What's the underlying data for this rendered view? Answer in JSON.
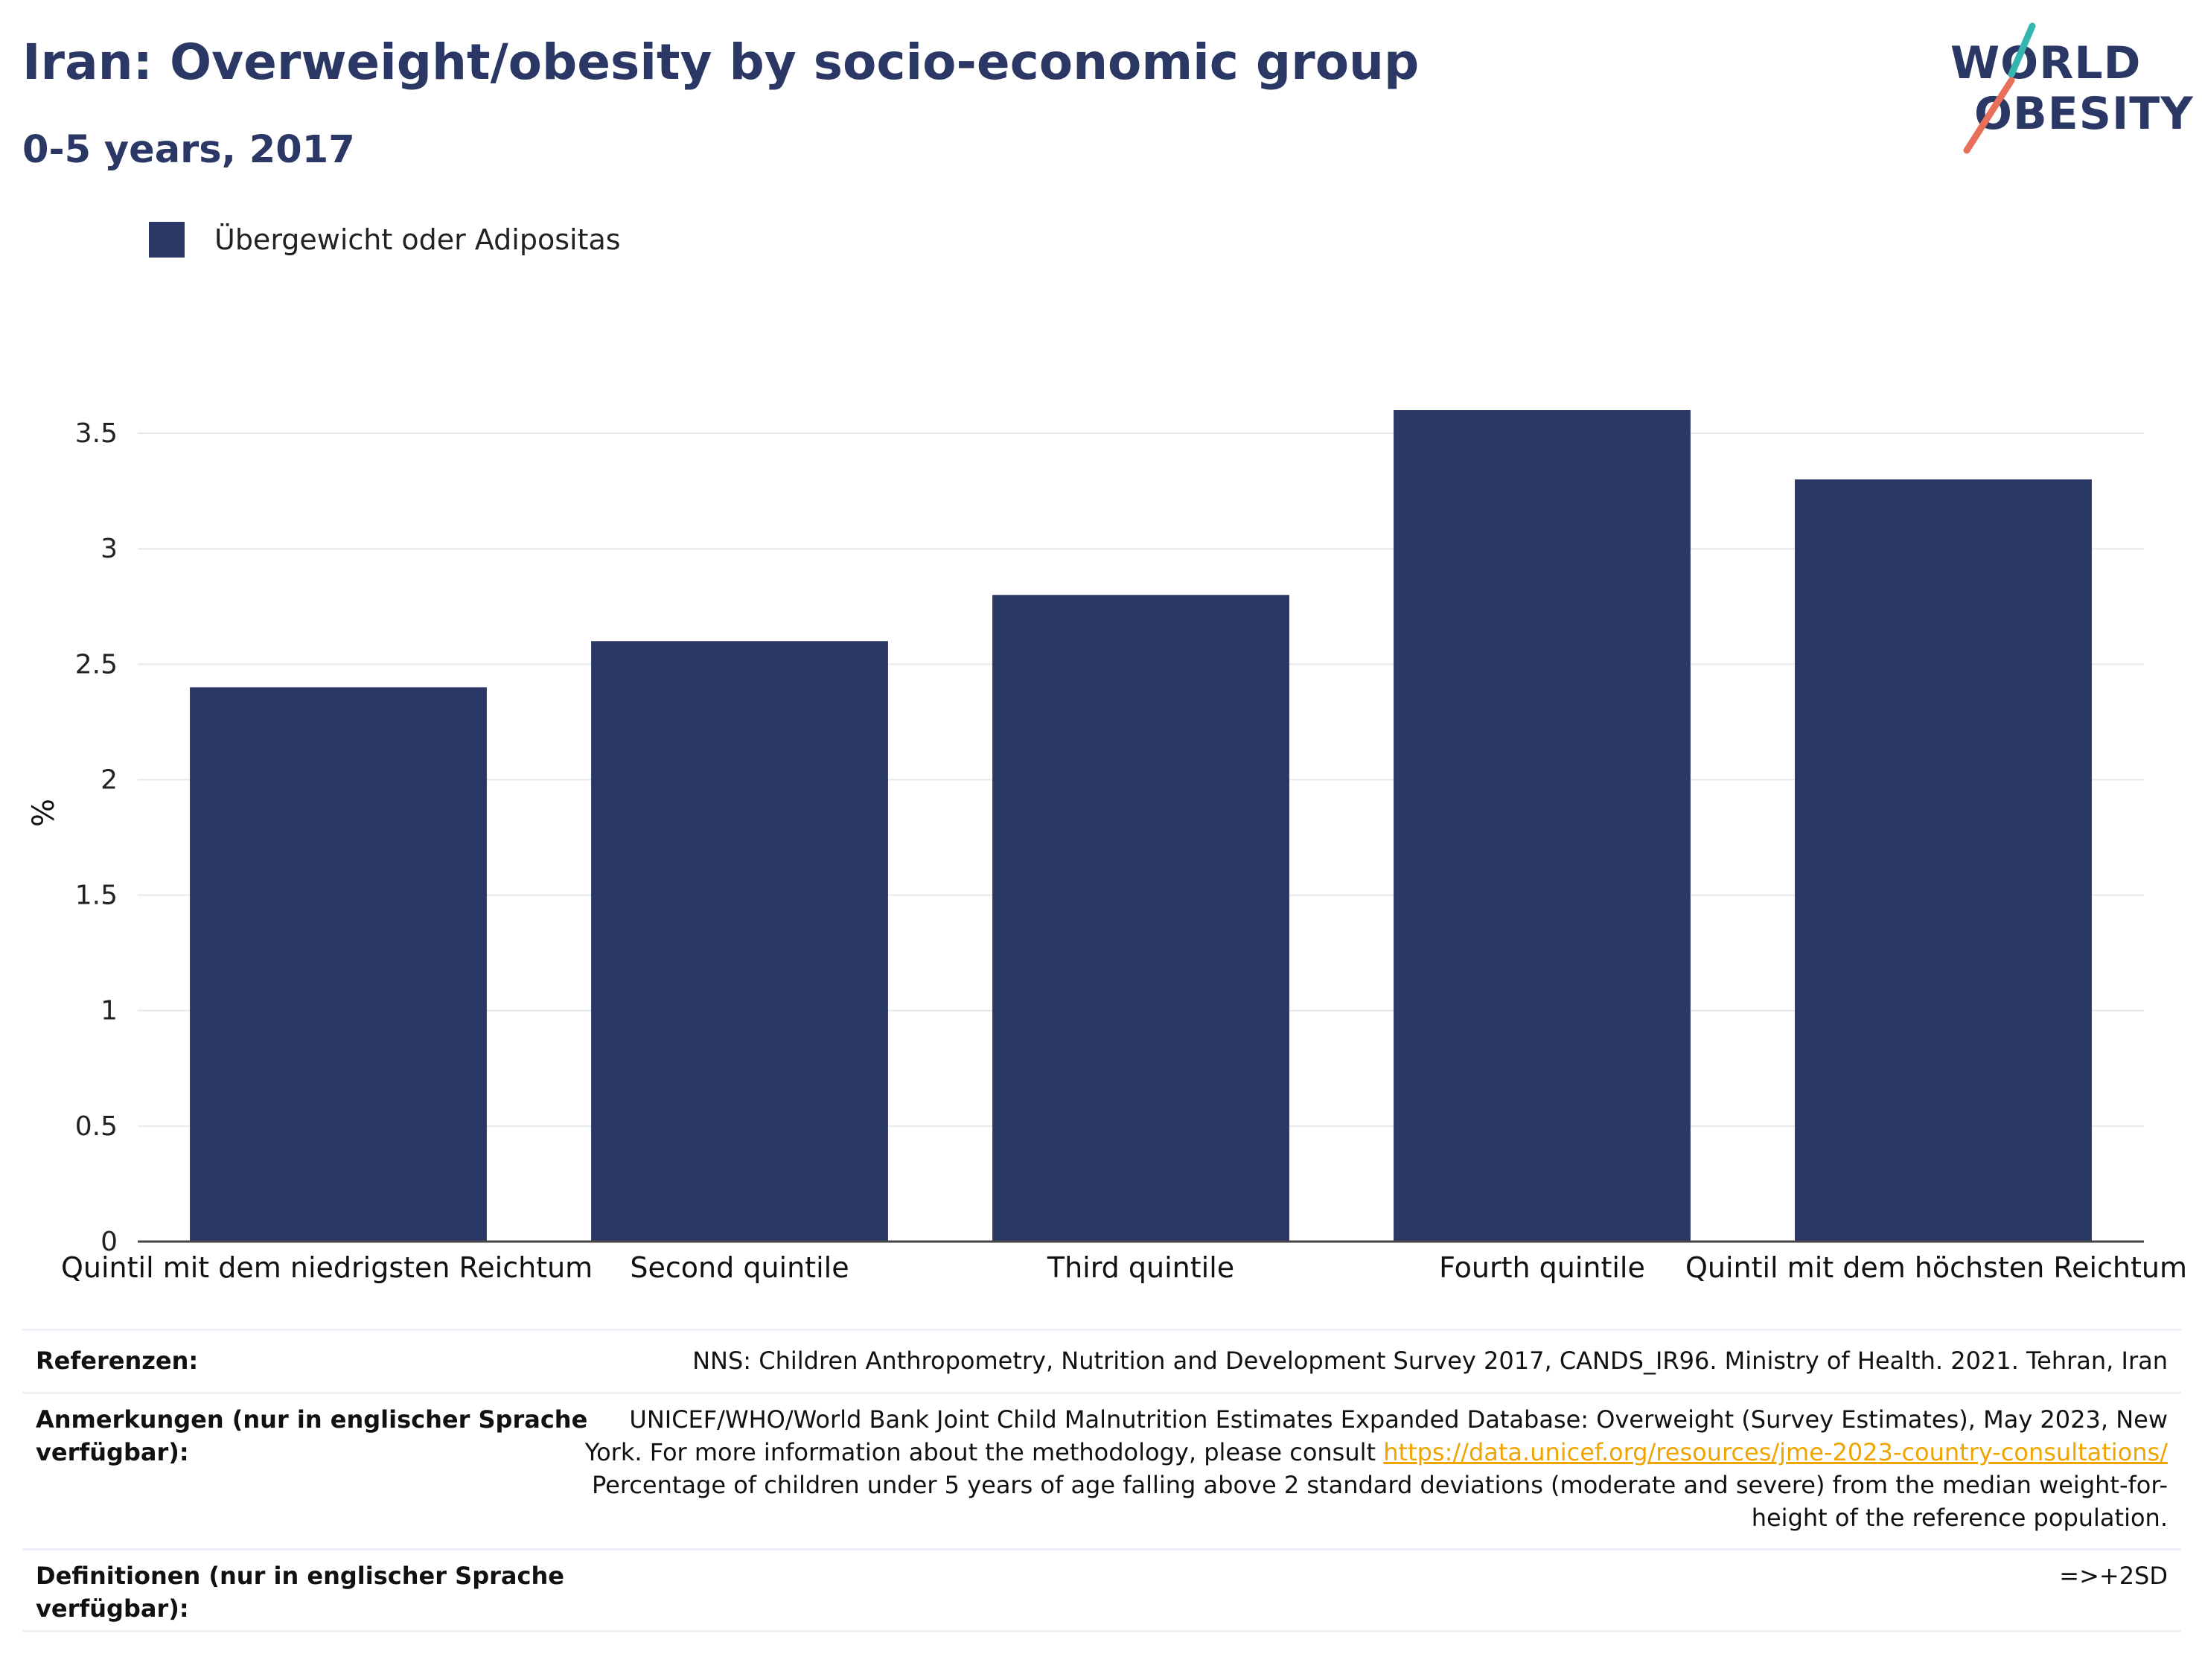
{
  "title": "Iran: Overweight/obesity by socio-economic group",
  "subtitle": "0-5 years, 2017",
  "logo": {
    "line1": "WORLD",
    "line2": "OBESITY"
  },
  "colors": {
    "bar": "#2b3765",
    "title": "#2b3765",
    "link": "#f0a400",
    "logo_slash_teal": "#35b5b0",
    "logo_slash_coral": "#e8705a"
  },
  "chart_data": {
    "type": "bar",
    "categories": [
      "Quintil mit dem niedrigsten Reichtum",
      "Second quintile",
      "Third quintile",
      "Fourth quintile",
      "Quintil mit dem höchsten Reichtum"
    ],
    "series": [
      {
        "name": "Übergewicht oder Adipositas",
        "values": [
          2.4,
          2.6,
          2.8,
          3.6,
          3.3
        ]
      }
    ],
    "ylabel": "%",
    "ylim": [
      0,
      3.7
    ],
    "yticks": [
      {
        "value": 0,
        "label": "0"
      },
      {
        "value": 0.5,
        "label": "0.5"
      },
      {
        "value": 1,
        "label": "1"
      },
      {
        "value": 1.5,
        "label": "1.5"
      },
      {
        "value": 2,
        "label": "2"
      },
      {
        "value": 2.5,
        "label": "2.5"
      },
      {
        "value": 3,
        "label": "3"
      },
      {
        "value": 3.5,
        "label": "3.5"
      }
    ],
    "grid": true,
    "legend_position": "top-left"
  },
  "table": {
    "references_label": "Referenzen:",
    "references_value": "NNS: Children Anthropometry, Nutrition and Development Survey 2017, CANDS_IR96. Ministry of Health. 2021. Tehran, Iran",
    "notes_label_1": "Anmerkungen (nur in englischer Sprache",
    "notes_label_2": "verfügbar):",
    "notes_value_1": "UNICEF/WHO/World Bank Joint Child Malnutrition Estimates Expanded Database: Overweight (Survey Estimates), May 2023, New",
    "notes_value_2": "York. For more information about the methodology, please consult",
    "notes_link": "https://data.unicef.org/resources/jme-2023-country-consultations/",
    "notes_value_3": "Percentage of children under 5 years of age falling above 2 standard deviations (moderate and severe) from the median weight-for-",
    "notes_value_4": "height of the reference population.",
    "definitions_label_1": "Definitionen (nur in englischer Sprache",
    "definitions_label_2": "verfügbar):",
    "definitions_value": "=>+2SD"
  }
}
